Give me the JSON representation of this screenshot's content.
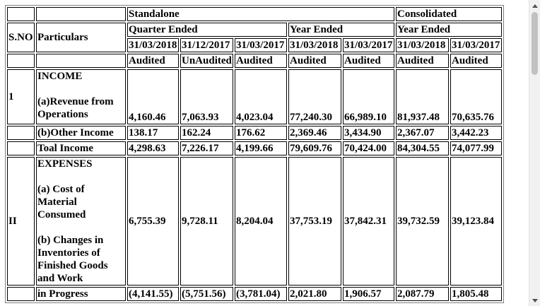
{
  "header": {
    "sno": "S.NO",
    "particulars": "Particulars",
    "standalone": "Standalone",
    "consolidated": "Consolidated",
    "quarter_ended": "Quarter Ended",
    "year_ended_standalone": "Year Ended",
    "year_ended_consolidated": "Year Ended",
    "dates": [
      "31/03/2018",
      "31/12/2017",
      "31/03/2017",
      "31/03/2018",
      "31/03/2017",
      "31/03/2018",
      "31/03/2017"
    ],
    "status": [
      "Audited",
      "UnAudited",
      "Audited",
      "Audited",
      "Audited",
      "Audited",
      "Audited"
    ]
  },
  "income": {
    "sno": "1",
    "heading": "INCOME",
    "revenue_label": "(a)Revenue from Operations",
    "revenue": [
      "4,160.46",
      "7,063.93",
      "4,023.04",
      "77,240.30",
      "66,989.10",
      "81,937.48",
      "70,635.76"
    ],
    "other_label": "(b)Other Income",
    "other": [
      "138.17",
      "162.24",
      "176.62",
      "2,369.46",
      "3,434.90",
      "2,367.07",
      "3,442.23"
    ],
    "total_label": "Toal Income",
    "total": [
      "4,298.63",
      "7,226.17",
      "4,199.66",
      "79,609.76",
      "70,424.00",
      "84,304.55",
      "74,077.99"
    ]
  },
  "expenses": {
    "sno": "II",
    "heading": "EXPENSES",
    "material_label": "(a) Cost of Material Consumed",
    "changes_label": "(b) Changes in Inventories of Finished Goods and Work",
    "material": [
      "6,755.39",
      "9,728.11",
      "8,204.04",
      "37,753.19",
      "37,842.31",
      "39,732.59",
      "39,123.84"
    ],
    "wip_label": "in Progress",
    "wip": [
      "(4,141.55)",
      "(5,751.56)",
      "(3,781.04)",
      "2,021.80",
      "1,906.57",
      "2,087.79",
      "1,805.48"
    ]
  }
}
